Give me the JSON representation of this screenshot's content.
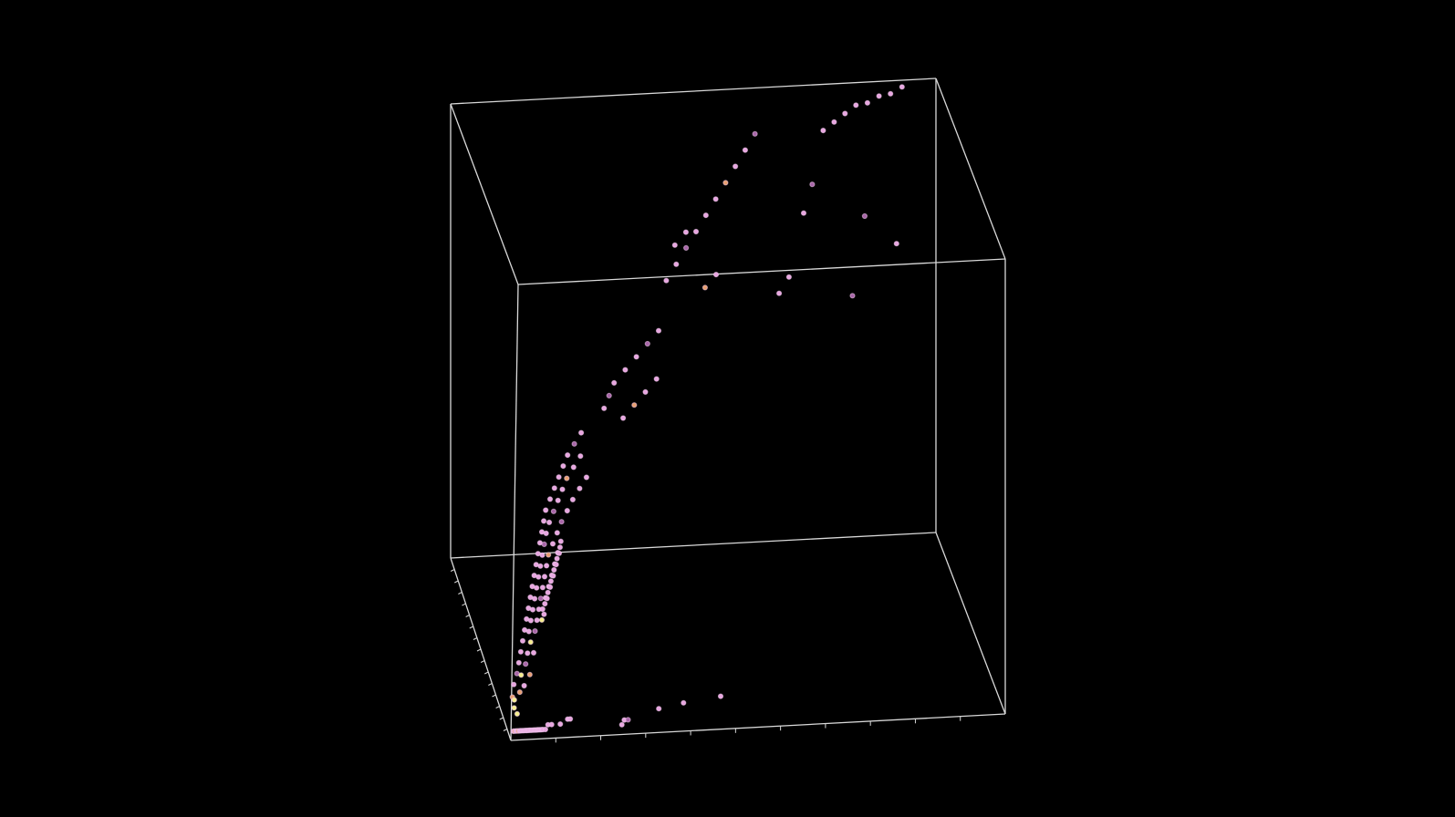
{
  "chart_data": {
    "type": "scatter",
    "dimensions": 3,
    "title": "",
    "xlabel": "",
    "ylabel": "",
    "zlabel": "",
    "background": "#000000",
    "box_color": "#d9d9d9",
    "tick_labels_visible": false,
    "grid": false,
    "legend": "none",
    "colors": {
      "pink": "#e8a6e0",
      "dark_pink": "#a866a8",
      "orange": "#e8a070",
      "yellow": "#f4ee8c",
      "ring": "#f3c8ee"
    },
    "ranges": {
      "x": [
        0,
        1
      ],
      "y": [
        0,
        1
      ],
      "z": [
        0,
        1
      ]
    },
    "series": [
      {
        "values": [
          [
            0.02,
            0.0,
            0.02,
            "pink"
          ],
          [
            0.03,
            0.0,
            0.02,
            "orange"
          ],
          [
            0.04,
            0.0,
            0.02,
            "pink"
          ],
          [
            0.05,
            0.0,
            0.02,
            "pink"
          ],
          [
            0.06,
            0.0,
            0.02,
            "orange"
          ],
          [
            0.07,
            0.0,
            0.02,
            "pink"
          ],
          [
            0.08,
            0.0,
            0.02,
            "pink"
          ],
          [
            0.09,
            0.0,
            0.02,
            "pink"
          ],
          [
            0.1,
            0.0,
            0.02,
            "pink"
          ],
          [
            0.11,
            0.0,
            0.02,
            "pink"
          ],
          [
            0.12,
            0.0,
            0.02,
            "pink"
          ],
          [
            0.13,
            0.0,
            0.02,
            "pink"
          ],
          [
            0.14,
            0.0,
            0.02,
            "pink"
          ],
          [
            0.15,
            0.0,
            0.02,
            "pink"
          ],
          [
            0.16,
            0.0,
            0.02,
            "pink"
          ],
          [
            0.17,
            0.0,
            0.02,
            "pink"
          ],
          [
            0.18,
            0.0,
            0.02,
            "pink"
          ],
          [
            0.19,
            0.0,
            0.02,
            "pink"
          ],
          [
            0.2,
            0.0,
            0.02,
            "pink"
          ],
          [
            0.21,
            0.0,
            0.02,
            "pink"
          ],
          [
            0.22,
            0.0,
            0.02,
            "pink"
          ],
          [
            0.23,
            0.0,
            0.02,
            "pink"
          ],
          [
            0.24,
            0.0,
            0.02,
            "pink"
          ],
          [
            0.25,
            0.0,
            0.02,
            "pink"
          ],
          [
            0.26,
            0.0,
            0.02,
            "pink"
          ],
          [
            0.28,
            0.0,
            0.02,
            "pink"
          ],
          [
            0.3,
            0.0,
            0.03,
            "pink"
          ],
          [
            0.33,
            0.0,
            0.03,
            "pink"
          ],
          [
            0.4,
            0.0,
            0.03,
            "pink"
          ],
          [
            0.46,
            0.0,
            0.04,
            "pink"
          ],
          [
            0.48,
            0.0,
            0.04,
            "pink"
          ],
          [
            0.03,
            0.2,
            0.08,
            "orange"
          ],
          [
            0.04,
            0.15,
            0.06,
            "yellow"
          ],
          [
            0.05,
            0.25,
            0.07,
            "yellow"
          ],
          [
            0.06,
            0.1,
            0.05,
            "yellow"
          ],
          [
            0.05,
            0.3,
            0.1,
            "pink"
          ],
          [
            0.08,
            0.35,
            0.12,
            "dark_pink"
          ],
          [
            0.09,
            0.2,
            0.09,
            "orange"
          ],
          [
            0.1,
            0.4,
            0.14,
            "pink"
          ],
          [
            0.11,
            0.3,
            0.12,
            "yellow"
          ],
          [
            0.12,
            0.45,
            0.16,
            "pink"
          ],
          [
            0.13,
            0.25,
            0.1,
            "pink"
          ],
          [
            0.14,
            0.5,
            0.18,
            "pink"
          ],
          [
            0.15,
            0.35,
            0.14,
            "dark_pink"
          ],
          [
            0.16,
            0.55,
            0.2,
            "pink"
          ],
          [
            0.17,
            0.4,
            0.16,
            "pink"
          ],
          [
            0.18,
            0.6,
            0.22,
            "pink"
          ],
          [
            0.18,
            0.3,
            0.12,
            "orange"
          ],
          [
            0.19,
            0.5,
            0.2,
            "pink"
          ],
          [
            0.2,
            0.65,
            0.24,
            "pink"
          ],
          [
            0.2,
            0.45,
            0.18,
            "yellow"
          ],
          [
            0.21,
            0.55,
            0.22,
            "pink"
          ],
          [
            0.22,
            0.7,
            0.26,
            "pink"
          ],
          [
            0.22,
            0.4,
            0.16,
            "pink"
          ],
          [
            0.23,
            0.6,
            0.24,
            "pink"
          ],
          [
            0.24,
            0.75,
            0.28,
            "pink"
          ],
          [
            0.24,
            0.5,
            0.2,
            "dark_pink"
          ],
          [
            0.25,
            0.65,
            0.26,
            "pink"
          ],
          [
            0.26,
            0.8,
            0.3,
            "pink"
          ],
          [
            0.26,
            0.55,
            0.22,
            "pink"
          ],
          [
            0.27,
            0.7,
            0.28,
            "pink"
          ],
          [
            0.28,
            0.85,
            0.32,
            "pink"
          ],
          [
            0.28,
            0.6,
            0.24,
            "pink"
          ],
          [
            0.29,
            0.75,
            0.3,
            "pink"
          ],
          [
            0.3,
            0.9,
            0.34,
            "pink"
          ],
          [
            0.3,
            0.65,
            0.26,
            "dark_pink"
          ],
          [
            0.31,
            0.8,
            0.32,
            "pink"
          ],
          [
            0.32,
            0.95,
            0.36,
            "pink"
          ],
          [
            0.32,
            0.7,
            0.28,
            "pink"
          ],
          [
            0.33,
            0.85,
            0.34,
            "pink"
          ],
          [
            0.34,
            1.0,
            0.38,
            "pink"
          ],
          [
            0.34,
            0.75,
            0.3,
            "pink"
          ],
          [
            0.35,
            0.9,
            0.36,
            "dark_pink"
          ],
          [
            0.36,
            1.05,
            0.4,
            "pink"
          ],
          [
            0.36,
            0.8,
            0.32,
            "pink"
          ],
          [
            0.37,
            0.95,
            0.38,
            "pink"
          ],
          [
            0.38,
            1.1,
            0.42,
            "pink"
          ],
          [
            0.38,
            0.85,
            0.34,
            "orange"
          ],
          [
            0.4,
            1.0,
            0.4,
            "pink"
          ],
          [
            0.42,
            1.15,
            0.44,
            "pink"
          ],
          [
            0.42,
            0.9,
            0.36,
            "pink"
          ],
          [
            0.44,
            1.05,
            0.42,
            "dark_pink"
          ],
          [
            0.46,
            1.2,
            0.46,
            "pink"
          ],
          [
            0.46,
            0.95,
            0.38,
            "pink"
          ],
          [
            0.48,
            1.1,
            0.44,
            "pink"
          ],
          [
            0.5,
            1.25,
            0.48,
            "pink"
          ],
          [
            0.5,
            1.0,
            0.4,
            "dark_pink"
          ],
          [
            0.52,
            1.15,
            0.46,
            "pink"
          ],
          [
            0.54,
            1.3,
            0.5,
            "pink"
          ],
          [
            0.55,
            1.05,
            0.42,
            "pink"
          ],
          [
            0.56,
            1.2,
            0.48,
            "orange"
          ],
          [
            0.58,
            1.35,
            0.52,
            "pink"
          ],
          [
            0.6,
            1.1,
            0.44,
            "pink"
          ],
          [
            0.62,
            1.25,
            0.5,
            "pink"
          ],
          [
            0.64,
            1.4,
            0.54,
            "dark_pink"
          ],
          [
            0.66,
            1.15,
            0.46,
            "pink"
          ],
          [
            0.68,
            1.3,
            0.52,
            "pink"
          ],
          [
            0.7,
            1.45,
            0.56,
            "pink"
          ],
          [
            0.72,
            1.2,
            0.48,
            "pink"
          ],
          [
            0.3,
            0.55,
            0.22,
            "yellow"
          ],
          [
            0.31,
            0.6,
            0.24,
            "pink"
          ],
          [
            0.32,
            0.58,
            0.23,
            "pink"
          ],
          [
            0.33,
            0.62,
            0.25,
            "pink"
          ],
          [
            0.34,
            0.66,
            0.26,
            "pink"
          ],
          [
            0.35,
            0.64,
            0.26,
            "pink"
          ],
          [
            0.36,
            0.68,
            0.27,
            "pink"
          ],
          [
            0.37,
            0.72,
            0.28,
            "pink"
          ],
          [
            0.38,
            0.7,
            0.28,
            "pink"
          ],
          [
            0.39,
            0.74,
            0.29,
            "pink"
          ],
          [
            0.4,
            0.78,
            0.3,
            "pink"
          ],
          [
            0.41,
            0.76,
            0.3,
            "pink"
          ],
          [
            0.42,
            0.8,
            0.31,
            "pink"
          ],
          [
            0.43,
            0.84,
            0.32,
            "pink"
          ],
          [
            0.44,
            0.82,
            0.32,
            "pink"
          ],
          [
            0.45,
            0.86,
            0.33,
            "pink"
          ],
          [
            0.46,
            0.9,
            0.34,
            "pink"
          ],
          [
            0.47,
            0.88,
            0.34,
            "pink"
          ],
          [
            0.48,
            0.92,
            0.35,
            "pink"
          ],
          [
            0.49,
            0.96,
            0.36,
            "pink"
          ],
          [
            0.9,
            0.02,
            0.02,
            "pink"
          ],
          [
            0.92,
            0.02,
            0.03,
            "pink"
          ],
          [
            0.95,
            0.02,
            0.03,
            "dark_pink"
          ],
          [
            1.2,
            0.03,
            0.05,
            "pink"
          ],
          [
            1.4,
            0.03,
            0.06,
            "pink"
          ],
          [
            1.7,
            0.03,
            0.07,
            "pink"
          ],
          [
            0.9,
            1.6,
            0.6,
            "pink"
          ],
          [
            0.95,
            1.7,
            0.62,
            "dark_pink"
          ],
          [
            1.0,
            1.8,
            0.64,
            "pink"
          ],
          [
            1.05,
            1.55,
            0.58,
            "pink"
          ],
          [
            1.1,
            1.9,
            0.66,
            "pink"
          ],
          [
            1.15,
            1.65,
            0.6,
            "orange"
          ],
          [
            1.2,
            2.0,
            0.68,
            "pink"
          ],
          [
            1.25,
            1.75,
            0.62,
            "pink"
          ],
          [
            1.3,
            2.1,
            0.7,
            "dark_pink"
          ],
          [
            1.35,
            1.85,
            0.64,
            "pink"
          ],
          [
            1.4,
            2.2,
            0.72,
            "pink"
          ],
          [
            1.5,
            2.6,
            0.8,
            "pink"
          ],
          [
            1.6,
            2.8,
            0.82,
            "pink"
          ],
          [
            1.7,
            3.0,
            0.84,
            "dark_pink"
          ],
          [
            1.8,
            3.2,
            0.86,
            "pink"
          ],
          [
            1.9,
            3.4,
            0.88,
            "pink"
          ],
          [
            2.0,
            3.6,
            0.9,
            "pink"
          ],
          [
            2.1,
            3.8,
            0.92,
            "orange"
          ],
          [
            2.2,
            4.0,
            0.94,
            "pink"
          ],
          [
            2.3,
            4.2,
            0.96,
            "pink"
          ],
          [
            2.4,
            4.4,
            0.98,
            "dark_pink"
          ],
          [
            3.0,
            4.8,
            0.95,
            "pink"
          ],
          [
            3.1,
            4.9,
            0.96,
            "pink"
          ],
          [
            3.2,
            5.0,
            0.97,
            "pink"
          ],
          [
            3.3,
            5.1,
            0.98,
            "pink"
          ],
          [
            3.4,
            5.15,
            0.98,
            "pink"
          ],
          [
            3.5,
            5.2,
            0.99,
            "pink"
          ],
          [
            3.6,
            5.25,
            0.99,
            "pink"
          ],
          [
            3.7,
            5.3,
            1.0,
            "pink"
          ],
          [
            1.8,
            5.0,
            0.7,
            "pink"
          ],
          [
            1.9,
            5.1,
            0.72,
            "pink"
          ],
          [
            2.0,
            4.5,
            0.64,
            "orange"
          ],
          [
            2.1,
            4.6,
            0.66,
            "pink"
          ],
          [
            2.8,
            4.4,
            0.8,
            "pink"
          ],
          [
            2.9,
            4.7,
            0.84,
            "dark_pink"
          ],
          [
            2.5,
            3.4,
            0.7,
            "pink"
          ],
          [
            2.6,
            3.6,
            0.72,
            "pink"
          ],
          [
            3.2,
            3.4,
            0.86,
            "dark_pink"
          ],
          [
            3.4,
            2.8,
            0.84,
            "pink"
          ],
          [
            3.0,
            2.4,
            0.76,
            "dark_pink"
          ]
        ]
      }
    ]
  }
}
